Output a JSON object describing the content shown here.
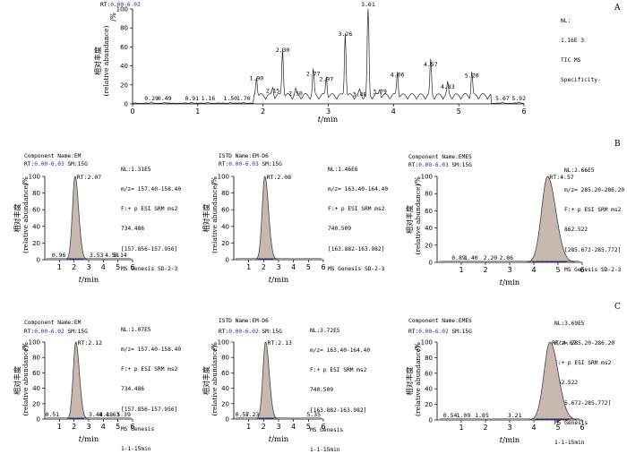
{
  "colors": {
    "axis": "#000000",
    "trace": "#222222",
    "peak_fill": "#c8b8b0",
    "peak_stroke": "#444444",
    "rt_range": "#1f2fa8"
  },
  "figure": {
    "tic": {
      "rt_prefix": "RT:",
      "rt_range": "0.00-6.03",
      "panel_letter": "A",
      "info": [
        "NL:",
        "1.16E 3",
        "TIC MS",
        "Specificity-"
      ]
    },
    "rows": [
      {
        "panel_letter": "B",
        "panels": [
          {
            "component": "Component Name:EM",
            "rt_prefix": "RT:",
            "rt_range": "0.00-6.03",
            "sm": " SM:15G",
            "info": [
              "NL:1.31E5",
              "m/z= 157.40-158.40",
              "F:+ p ESI SRM ms2",
              "734.486",
              "[157.856-157.956]",
              "MS Genesis SD-2-3"
            ]
          },
          {
            "component": "ISTD Name:EM-D6",
            "rt_prefix": "RT:",
            "rt_range": "0.00-6.03",
            "sm": " SM:15G",
            "info": [
              "NL:1.46E6",
              "m/z= 163.40-164.40",
              "F:+ p ESI SRM ms2",
              "740.509",
              "[163.882-163.982]",
              "MS Genesis SD-2-3"
            ]
          },
          {
            "component": "Component Name:EMES",
            "rt_prefix": "RT:",
            "rt_range": "0.00-6.03",
            "sm": " SM:15G",
            "info": [
              "NL:2.66E5",
              "m/z= 285.20-286.20",
              "F:+ p ESI SRM ms2",
              "862.522",
              "[285.672-285.772]",
              "MS Genesis SD-2-3"
            ]
          }
        ]
      },
      {
        "panel_letter": "C",
        "panels": [
          {
            "component": "Component Name:EM",
            "rt_prefix": "RT:",
            "rt_range": "0.00-6.02",
            "sm": " SM:15G",
            "info": [
              "NL:1.07E5",
              "m/z= 157.40-158.40",
              "F:+ p ESI SRM ms2",
              "734.486",
              "[157.856-157.956]",
              "MS Genesis",
              "1-1-15min"
            ]
          },
          {
            "component": "ISTD Name:EM-D6",
            "rt_prefix": "RT:",
            "rt_range": "0.00-6.02",
            "sm": " SM:15G",
            "info": [
              "NL:3.72E5",
              "m/z= 163.40-164.40",
              "F:+ p ESI SRM ms2",
              "740.509",
              "[163.882-163.982]",
              "MS Genesis",
              "1-1-15min"
            ]
          },
          {
            "component": "Component Name:EMES",
            "rt_prefix": "RT:",
            "rt_range": "0.00-6.02",
            "sm": " SM:15G",
            "info": [
              "NL:3.69E5",
              "m/z= 285.20-286.20",
              "F:+ p ESI SRM ms2",
              "862.522",
              "[285.672-285.772]",
              "MS Genesis",
              "1-1-15min"
            ]
          }
        ]
      }
    ]
  },
  "chart_data": [
    {
      "type": "line",
      "xlabel": "t/min",
      "ylabel_cn": "相对丰度",
      "ylabel": "(relative abundance)",
      "yunit": "/%",
      "xlim": [
        0,
        6
      ],
      "ylim": [
        0,
        100
      ],
      "xticks": [
        0,
        1,
        2,
        3,
        4,
        5,
        6
      ],
      "yticks": [
        0,
        20,
        40,
        60,
        80,
        100
      ],
      "peaks": [
        {
          "rt": 0.29,
          "label": "0.29",
          "h": 1
        },
        {
          "rt": 0.49,
          "label": "0.49",
          "h": 1
        },
        {
          "rt": 0.91,
          "label": "0.91",
          "h": 1
        },
        {
          "rt": 1.16,
          "label": "1.16",
          "h": 1
        },
        {
          "rt": 1.5,
          "label": "1.50",
          "h": 1
        },
        {
          "rt": 1.7,
          "label": "1.70",
          "h": 1
        },
        {
          "rt": 1.9,
          "label": "1.90",
          "h": 22
        },
        {
          "rt": 2.15,
          "label": "2.15",
          "h": 9
        },
        {
          "rt": 2.3,
          "label": "2.30",
          "h": 52
        },
        {
          "rt": 2.5,
          "label": "2.50",
          "h": 6
        },
        {
          "rt": 2.77,
          "label": "2.77",
          "h": 27
        },
        {
          "rt": 2.97,
          "label": "2.97",
          "h": 21
        },
        {
          "rt": 3.26,
          "label": "3.26",
          "h": 69
        },
        {
          "rt": 3.48,
          "label": "3.48",
          "h": 5
        },
        {
          "rt": 3.61,
          "label": "3.61",
          "h": 100
        },
        {
          "rt": 3.79,
          "label": "3.79",
          "h": 8
        },
        {
          "rt": 4.06,
          "label": "4.06",
          "h": 26
        },
        {
          "rt": 4.57,
          "label": "4.57",
          "h": 37
        },
        {
          "rt": 4.83,
          "label": "4.83",
          "h": 13
        },
        {
          "rt": 5.2,
          "label": "5.20",
          "h": 25
        },
        {
          "rt": 5.67,
          "label": "5.67",
          "h": 1
        },
        {
          "rt": 5.92,
          "label": "5.92",
          "h": 1
        }
      ]
    },
    {
      "type": "area",
      "xlabel": "t/min",
      "ylabel_cn": "相对丰度",
      "ylabel": "(relative abundance)",
      "yunit": "/%",
      "xlim": [
        0,
        6
      ],
      "ylim": [
        0,
        100
      ],
      "xticks": [
        1,
        2,
        3,
        4,
        5,
        6
      ],
      "yticks": [
        0,
        20,
        40,
        60,
        80,
        100
      ],
      "peak": {
        "rt": 2.07,
        "label": "RT:2.07",
        "h": 100,
        "width": 0.18
      },
      "labels": [
        {
          "rt": 0.96,
          "label": "0.96"
        },
        {
          "rt": 3.53,
          "label": "3.53"
        },
        {
          "rt": 4.58,
          "label": "4.58"
        },
        {
          "rt": 5.14,
          "label": "5.14"
        }
      ]
    },
    {
      "type": "area",
      "xlabel": "t/min",
      "ylabel_cn": "相对丰度",
      "ylabel": "(relative abundance)",
      "yunit": "/%",
      "xlim": [
        0,
        6
      ],
      "ylim": [
        0,
        100
      ],
      "xticks": [
        1,
        2,
        3,
        4,
        5,
        6
      ],
      "yticks": [
        0,
        20,
        40,
        60,
        80,
        100
      ],
      "peak": {
        "rt": 2.08,
        "label": "RT:2.08",
        "h": 100,
        "width": 0.18
      },
      "labels": []
    },
    {
      "type": "area",
      "xlabel": "t/min",
      "ylabel_cn": "相对丰度",
      "ylabel": "(relative abundance)",
      "yunit": "/%",
      "xlim": [
        0,
        6
      ],
      "ylim": [
        0,
        100
      ],
      "xticks": [
        1,
        2,
        3,
        4,
        5,
        6
      ],
      "yticks": [
        0,
        20,
        40,
        60,
        80,
        100
      ],
      "peak": {
        "rt": 4.57,
        "label": "RT:4.57",
        "h": 100,
        "width": 0.25
      },
      "labels": [
        {
          "rt": 0.89,
          "label": "0.89"
        },
        {
          "rt": 1.4,
          "label": "1.40"
        },
        {
          "rt": 2.2,
          "label": "2.20"
        },
        {
          "rt": 2.86,
          "label": "2.86"
        }
      ]
    },
    {
      "type": "area",
      "xlabel": "t/min",
      "ylabel_cn": "相对丰度",
      "ylabel": "(relative abundance)",
      "yunit": "/%",
      "xlim": [
        0,
        6
      ],
      "ylim": [
        0,
        100
      ],
      "xticks": [
        1,
        2,
        3,
        4,
        5,
        6
      ],
      "yticks": [
        0,
        20,
        40,
        60,
        80,
        100
      ],
      "peak": {
        "rt": 2.12,
        "label": "RT:2.12",
        "h": 100,
        "width": 0.18
      },
      "labels": [
        {
          "rt": 0.51,
          "label": "0.51"
        },
        {
          "rt": 3.48,
          "label": "3.48"
        },
        {
          "rt": 4.18,
          "label": "4.18"
        },
        {
          "rt": 4.63,
          "label": "4.63"
        },
        {
          "rt": 5.39,
          "label": "5.39"
        }
      ]
    },
    {
      "type": "area",
      "xlabel": "t/min",
      "ylabel_cn": "相对丰度",
      "ylabel": "(relative abundance)",
      "yunit": "/%",
      "xlim": [
        0,
        6
      ],
      "ylim": [
        0,
        100
      ],
      "xticks": [
        1,
        2,
        3,
        4,
        5,
        6
      ],
      "yticks": [
        0,
        20,
        40,
        60,
        80,
        100
      ],
      "peak": {
        "rt": 2.13,
        "label": "RT:2.13",
        "h": 100,
        "width": 0.18
      },
      "labels": [
        {
          "rt": 0.57,
          "label": "0.57"
        },
        {
          "rt": 1.23,
          "label": "1.23"
        },
        {
          "rt": 5.35,
          "label": "5.35"
        }
      ]
    },
    {
      "type": "area",
      "xlabel": "t/min",
      "ylabel_cn": "相对丰度",
      "ylabel": "(relative abundance)",
      "yunit": "/%",
      "xlim": [
        0,
        6
      ],
      "ylim": [
        0,
        100
      ],
      "xticks": [
        1,
        2,
        3,
        4,
        5,
        6
      ],
      "yticks": [
        0,
        20,
        40,
        60,
        80,
        100
      ],
      "peak": {
        "rt": 4.67,
        "label": "RT:4.67",
        "h": 100,
        "width": 0.25
      },
      "labels": [
        {
          "rt": 0.54,
          "label": "0.54"
        },
        {
          "rt": 1.09,
          "label": "1.09"
        },
        {
          "rt": 1.85,
          "label": "1.85"
        },
        {
          "rt": 3.21,
          "label": "3.21"
        }
      ]
    }
  ]
}
